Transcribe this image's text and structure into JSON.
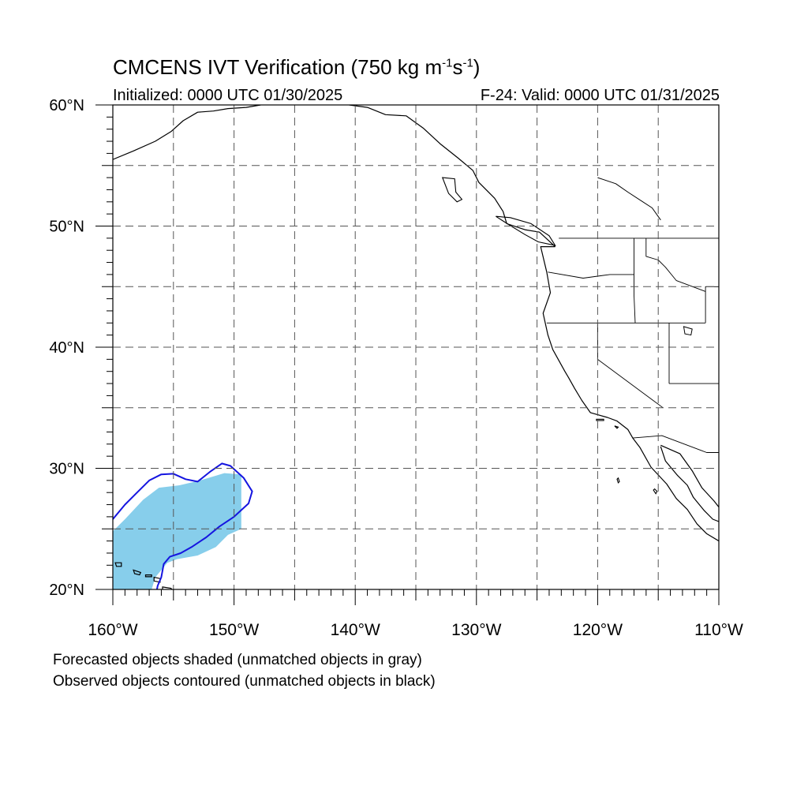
{
  "title": {
    "main": "CMCENS IVT Verification (750 kg m",
    "exp1": "-1",
    "mid": "s",
    "exp2": "-1",
    "end": ")"
  },
  "subtitle_left": "Initialized: 0000 UTC 01/30/2025",
  "subtitle_right": "F-24: Valid: 0000 UTC 01/31/2025",
  "map": {
    "lon_range": [
      -160,
      -110
    ],
    "lat_range": [
      20,
      60
    ],
    "lat_labels": [
      {
        "value": 60,
        "text": "60°N"
      },
      {
        "value": 50,
        "text": "50°N"
      },
      {
        "value": 40,
        "text": "40°N"
      },
      {
        "value": 30,
        "text": "30°N"
      },
      {
        "value": 20,
        "text": "20°N"
      }
    ],
    "lon_labels": [
      {
        "value": -160,
        "text": "160°W"
      },
      {
        "value": -150,
        "text": "150°W"
      },
      {
        "value": -140,
        "text": "140°W"
      },
      {
        "value": -130,
        "text": "130°W"
      },
      {
        "value": -120,
        "text": "120°W"
      },
      {
        "value": -110,
        "text": "110°W"
      }
    ],
    "gridlines_lon": [
      -155,
      -150,
      -145,
      -140,
      -135,
      -130,
      -125,
      -120,
      -115
    ],
    "gridlines_lat": [
      25,
      30,
      35,
      40,
      45,
      50,
      55
    ],
    "colors": {
      "forecast_fill": "#87ceeb",
      "observed_contour": "#1515e0",
      "coastline": "#000000",
      "grid": "#555555"
    },
    "forecast_object": [
      [
        -160,
        20
      ],
      [
        -160,
        24.8
      ],
      [
        -159,
        25.8
      ],
      [
        -157.5,
        27.4
      ],
      [
        -156.2,
        28.4
      ],
      [
        -154.5,
        28.6
      ],
      [
        -152.8,
        29
      ],
      [
        -150.8,
        29.6
      ],
      [
        -149.4,
        29.5
      ],
      [
        -149.4,
        25
      ],
      [
        -150.5,
        24.5
      ],
      [
        -151.5,
        23.5
      ],
      [
        -153,
        22.8
      ],
      [
        -154.7,
        22.5
      ],
      [
        -155.5,
        22.2
      ],
      [
        -156.5,
        21
      ],
      [
        -156.8,
        20
      ]
    ],
    "observed_object": [
      [
        -160,
        25.8
      ],
      [
        -159,
        27
      ],
      [
        -158,
        28
      ],
      [
        -157,
        29
      ],
      [
        -156,
        29.5
      ],
      [
        -155,
        29.55
      ],
      [
        -154,
        29.1
      ],
      [
        -153,
        28.9
      ],
      [
        -152,
        29.7
      ],
      [
        -151,
        30.4
      ],
      [
        -150.3,
        30.2
      ],
      [
        -149.2,
        29.2
      ],
      [
        -148.5,
        28.1
      ],
      [
        -148.8,
        27.1
      ],
      [
        -150,
        26
      ],
      [
        -151.2,
        25.2
      ],
      [
        -152.3,
        24.3
      ],
      [
        -153.5,
        23.5
      ],
      [
        -154.4,
        23
      ],
      [
        -155.3,
        22.7
      ],
      [
        -155.8,
        22.1
      ],
      [
        -156,
        21
      ],
      [
        -156.3,
        20.3
      ],
      [
        -156.4,
        19.8
      ]
    ],
    "coastline": [
      [
        -123.5,
        48.3
      ],
      [
        -124.7,
        48.3
      ],
      [
        -124.2,
        46.2
      ],
      [
        -123.9,
        44.5
      ],
      [
        -124.5,
        42.8
      ],
      [
        -124.1,
        41
      ],
      [
        -123.7,
        39.8
      ],
      [
        -122.7,
        38
      ],
      [
        -122.4,
        37.5
      ],
      [
        -121.9,
        36.6
      ],
      [
        -121.3,
        35.6
      ],
      [
        -120.6,
        34.6
      ],
      [
        -119.2,
        34.2
      ],
      [
        -118.4,
        33.9
      ],
      [
        -117.5,
        33.2
      ],
      [
        -117.1,
        32.5
      ],
      [
        -116.5,
        31.7
      ],
      [
        -115.6,
        30.1
      ],
      [
        -114.3,
        28.7
      ],
      [
        -113.5,
        27.5
      ],
      [
        -112.6,
        26.6
      ],
      [
        -111.8,
        25.4
      ],
      [
        -111,
        24.6
      ],
      [
        -110,
        24
      ]
    ],
    "gulf_coast": [
      [
        -114.8,
        31.8
      ],
      [
        -114.4,
        30.6
      ],
      [
        -113.4,
        29.4
      ],
      [
        -112.6,
        28.6
      ],
      [
        -112.1,
        27.6
      ],
      [
        -111.2,
        26.5
      ],
      [
        -110.5,
        25.8
      ],
      [
        -110,
        25.6
      ]
    ],
    "mainland_mexico": [
      [
        -114.8,
        31.9
      ],
      [
        -113.2,
        31.2
      ],
      [
        -112.2,
        29.8
      ],
      [
        -111.4,
        28.4
      ],
      [
        -110.4,
        27.3
      ],
      [
        -110,
        26.8
      ]
    ],
    "bc_coast": [
      [
        -123.5,
        48.3
      ],
      [
        -124.8,
        49.5
      ],
      [
        -126,
        49.7
      ],
      [
        -127.5,
        50.2
      ],
      [
        -127.8,
        51.2
      ],
      [
        -128.5,
        52.3
      ],
      [
        -129.8,
        53.6
      ],
      [
        -130.3,
        54.6
      ],
      [
        -131.5,
        55.6
      ],
      [
        -133,
        56.8
      ],
      [
        -134.4,
        58.1
      ],
      [
        -135.8,
        59.1
      ],
      [
        -137.5,
        59.2
      ],
      [
        -139,
        59.8
      ],
      [
        -140.5,
        60
      ]
    ],
    "alaska_coast": [
      [
        -160,
        55.5
      ],
      [
        -158.3,
        56.2
      ],
      [
        -156.5,
        57
      ],
      [
        -155.2,
        57.8
      ],
      [
        -154.2,
        58.7
      ],
      [
        -153,
        59.4
      ],
      [
        -151.7,
        59.5
      ],
      [
        -150.5,
        59.7
      ],
      [
        -149,
        59.8
      ],
      [
        -147.8,
        60
      ]
    ],
    "hawaii_islands": [
      [
        [
          -155.9,
          20.2
        ],
        [
          -155.2,
          20.1
        ],
        [
          -154.8,
          19.6
        ],
        [
          -155.4,
          19.1
        ],
        [
          -155.9,
          19.4
        ],
        [
          -155.9,
          20.2
        ]
      ],
      [
        [
          -156.6,
          21
        ],
        [
          -156.1,
          20.9
        ],
        [
          -156.1,
          20.6
        ],
        [
          -156.6,
          20.7
        ],
        [
          -156.6,
          21
        ]
      ],
      [
        [
          -157.3,
          21.2
        ],
        [
          -156.8,
          21.2
        ],
        [
          -156.8,
          21.05
        ],
        [
          -157.3,
          21.05
        ],
        [
          -157.3,
          21.2
        ]
      ],
      [
        [
          -158.3,
          21.6
        ],
        [
          -157.7,
          21.4
        ],
        [
          -157.8,
          21.2
        ],
        [
          -158.2,
          21.3
        ],
        [
          -158.3,
          21.6
        ]
      ],
      [
        [
          -159.8,
          22.2
        ],
        [
          -159.3,
          22.2
        ],
        [
          -159.3,
          21.9
        ],
        [
          -159.7,
          21.9
        ],
        [
          -159.8,
          22.2
        ]
      ]
    ],
    "islands": [
      [
        [
          -132.8,
          54
        ],
        [
          -131.8,
          53.9
        ],
        [
          -131.7,
          52.8
        ],
        [
          -131.2,
          52.2
        ],
        [
          -131.6,
          52
        ],
        [
          -132.3,
          52.7
        ],
        [
          -132.8,
          54
        ]
      ],
      [
        [
          -123.5,
          48.4
        ],
        [
          -124.9,
          48.7
        ],
        [
          -126,
          49.3
        ],
        [
          -127.3,
          50.1
        ],
        [
          -128.4,
          50.8
        ],
        [
          -127.2,
          50.7
        ],
        [
          -125.5,
          50.2
        ],
        [
          -124,
          49.2
        ],
        [
          -123.5,
          48.4
        ]
      ],
      [
        [
          -118.6,
          33.5
        ],
        [
          -118.3,
          33.4
        ],
        [
          -118.4,
          33.3
        ],
        [
          -118.6,
          33.5
        ]
      ],
      [
        [
          -120.1,
          34.05
        ],
        [
          -119.5,
          34.05
        ],
        [
          -119.5,
          33.95
        ],
        [
          -120.1,
          33.95
        ],
        [
          -120.1,
          34.05
        ]
      ],
      [
        [
          -118.3,
          29.2
        ],
        [
          -118.2,
          28.9
        ],
        [
          -118.3,
          28.8
        ],
        [
          -118.4,
          29.1
        ],
        [
          -118.3,
          29.2
        ]
      ],
      [
        [
          -115.3,
          28.3
        ],
        [
          -115.1,
          28.1
        ],
        [
          -115.2,
          27.9
        ],
        [
          -115.4,
          28.2
        ],
        [
          -115.3,
          28.3
        ]
      ]
    ],
    "borders": [
      [
        [
          -123.2,
          49
        ],
        [
          -110,
          49
        ]
      ],
      [
        [
          -124.1,
          46.2
        ],
        [
          -121.2,
          45.7
        ],
        [
          -119,
          46
        ],
        [
          -117,
          46
        ]
      ],
      [
        [
          -117,
          49
        ],
        [
          -117,
          44.3
        ],
        [
          -116.9,
          42
        ]
      ],
      [
        [
          -124.2,
          42
        ],
        [
          -111.1,
          42
        ]
      ],
      [
        [
          -120,
          42
        ],
        [
          -120,
          39
        ],
        [
          -114.6,
          35
        ]
      ],
      [
        [
          -114.1,
          42
        ],
        [
          -114.1,
          37
        ]
      ],
      [
        [
          -117.1,
          32.5
        ],
        [
          -114.7,
          32.7
        ],
        [
          -111,
          31.3
        ],
        [
          -110,
          31.3
        ]
      ],
      [
        [
          -111.1,
          42
        ],
        [
          -111.1,
          45
        ],
        [
          -110,
          45
        ]
      ],
      [
        [
          -114.1,
          37
        ],
        [
          -110,
          37
        ]
      ],
      [
        [
          -116,
          49
        ],
        [
          -116,
          47.5
        ],
        [
          -115,
          47.2
        ],
        [
          -114.4,
          46.6
        ],
        [
          -113.5,
          45.5
        ],
        [
          -111.1,
          44.6
        ]
      ]
    ],
    "lakes": [
      [
        [
          -112.9,
          41.7
        ],
        [
          -112.2,
          41.5
        ],
        [
          -112.3,
          41
        ],
        [
          -112.8,
          41.1
        ],
        [
          -112.9,
          41.7
        ]
      ]
    ],
    "rivers_canada": [
      [
        [
          -120,
          54
        ],
        [
          -118.5,
          53.5
        ],
        [
          -117.5,
          52.8
        ],
        [
          -115.5,
          51.5
        ],
        [
          -114.8,
          50.5
        ]
      ]
    ]
  },
  "notes": [
    "Forecasted objects shaded (unmatched objects in gray)",
    "Observed objects contoured (unmatched objects in black)"
  ]
}
